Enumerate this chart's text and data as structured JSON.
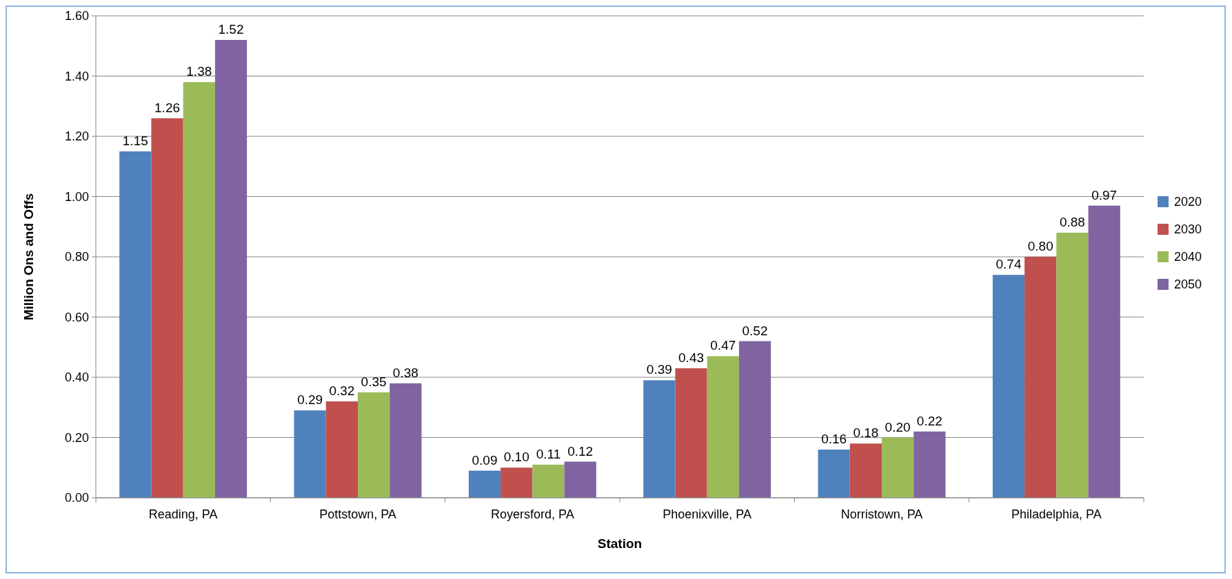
{
  "chart_data": {
    "type": "bar",
    "xlabel": "Station",
    "ylabel": "Million Ons and Offs",
    "categories": [
      "Reading, PA",
      "Pottstown, PA",
      "Royersford, PA",
      "Phoenixville, PA",
      "Norristown, PA",
      "Philadelphia, PA"
    ],
    "series": [
      {
        "name": "2020",
        "color": "#4f81bd",
        "values": [
          1.15,
          0.29,
          0.09,
          0.39,
          0.16,
          0.74
        ],
        "value_labels": [
          "1.15",
          "0.29",
          "0.09",
          "0.39",
          "0.16",
          "0.74"
        ]
      },
      {
        "name": "2030",
        "color": "#c0504d",
        "values": [
          1.26,
          0.32,
          0.1,
          0.43,
          0.18,
          0.8
        ],
        "value_labels": [
          "1.26",
          "0.32",
          "0.10",
          "0.43",
          "0.18",
          "0.80"
        ]
      },
      {
        "name": "2040",
        "color": "#9bbb59",
        "values": [
          1.38,
          0.35,
          0.11,
          0.47,
          0.2,
          0.88
        ],
        "value_labels": [
          "1.38",
          "0.35",
          "0.11",
          "0.47",
          "0.20",
          "0.88"
        ]
      },
      {
        "name": "2050",
        "color": "#8064a2",
        "values": [
          1.52,
          0.38,
          0.12,
          0.52,
          0.22,
          0.97
        ],
        "value_labels": [
          "1.52",
          "0.38",
          "0.12",
          "0.52",
          "0.22",
          "0.97"
        ]
      }
    ],
    "ylim": [
      0,
      1.6
    ],
    "yticks": [
      {
        "value": 0,
        "label": "0.00"
      },
      {
        "value": 0.2,
        "label": "0.20"
      },
      {
        "value": 0.4,
        "label": "0.40"
      },
      {
        "value": 0.6,
        "label": "0.60"
      },
      {
        "value": 0.8,
        "label": "0.80"
      },
      {
        "value": 1,
        "label": "1.00"
      },
      {
        "value": 1.2,
        "label": "1.20"
      },
      {
        "value": 1.4,
        "label": "1.40"
      },
      {
        "value": 1.6,
        "label": "1.60"
      }
    ],
    "grid": "y",
    "legend": "right"
  }
}
